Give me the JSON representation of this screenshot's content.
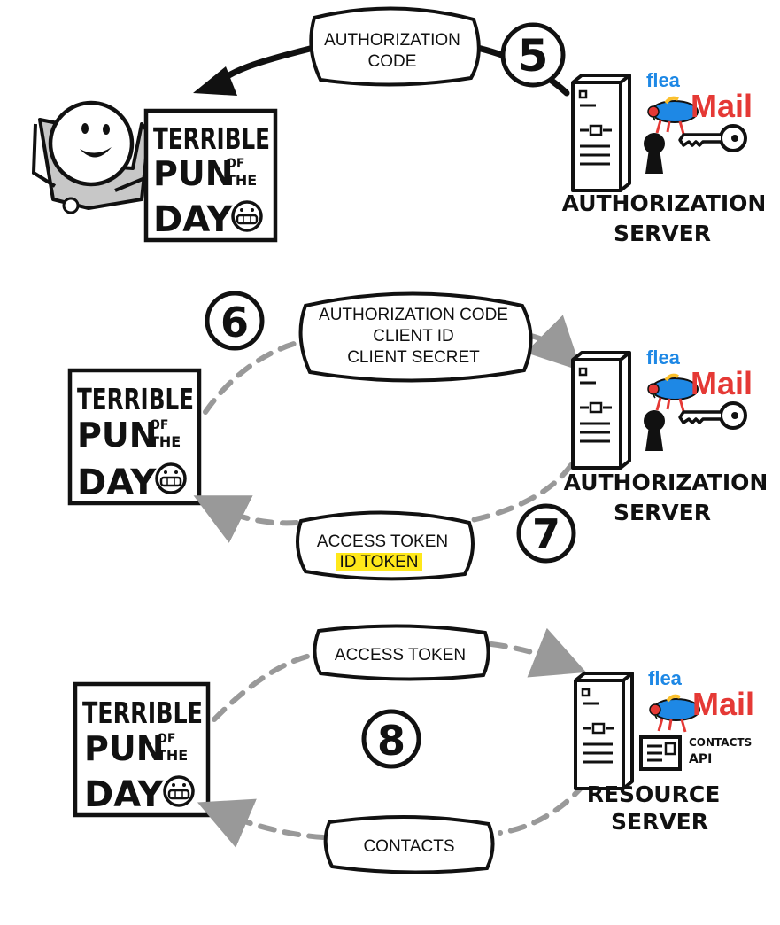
{
  "colors": {
    "ink": "#111111",
    "arrow_gray": "#999999",
    "highlight": "#ffe81a",
    "mail_red": "#e53935",
    "mail_green": "#43a047",
    "flea_blue": "#1e88e5"
  },
  "app": {
    "logo_line1": "TERRIBLE",
    "logo_line2": "PUN",
    "logo_of": "OF",
    "logo_the": "THE",
    "logo_line3": "DAY"
  },
  "brand": {
    "flea": "flea",
    "mail": "Mail"
  },
  "step5": {
    "number": "5",
    "bubble_line1": "AUTHORIZATION",
    "bubble_line2": "CODE",
    "server_line1": "AUTHORIZATION",
    "server_line2": "SERVER"
  },
  "step6": {
    "number": "6",
    "bubble_line1": "AUTHORIZATION CODE",
    "bubble_line2": "CLIENT ID",
    "bubble_line3": "CLIENT SECRET"
  },
  "step7": {
    "number": "7",
    "bubble_line1": "ACCESS TOKEN",
    "bubble_line2": "ID TOKEN",
    "server_line1": "AUTHORIZATION",
    "server_line2": "SERVER"
  },
  "step8": {
    "number": "8",
    "request_bubble": "ACCESS TOKEN",
    "response_bubble": "CONTACTS",
    "api_line1": "CONTACTS",
    "api_line2": "API",
    "server_line1": "RESOURCE",
    "server_line2": "SERVER"
  },
  "icons": [
    "stick-figure-user-icon",
    "server-icon",
    "keyhole-icon",
    "key-icon",
    "contacts-card-icon",
    "flea-icon"
  ]
}
